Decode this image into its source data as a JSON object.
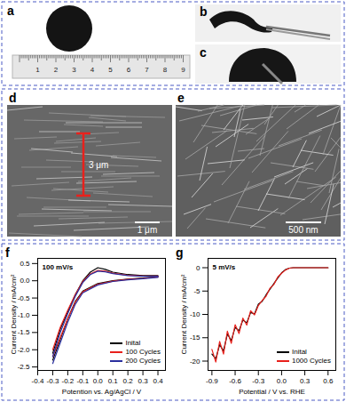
{
  "panels": [
    {
      "label": "a",
      "ruler_labels": [
        1,
        2,
        3,
        4,
        5,
        6,
        7,
        8,
        9
      ]
    },
    {
      "label": "b"
    },
    {
      "label": "c"
    },
    {
      "label": "d",
      "annotations": [
        "3 μm",
        "1 μm"
      ]
    },
    {
      "label": "e",
      "annotations": [
        "500 nm"
      ]
    }
  ],
  "chart_data": [
    {
      "panel": "f",
      "type": "line",
      "annotation": "100 mV/s",
      "x_label": "Potention vs. Ag/AgCl / V",
      "y_label": "Current Density / mA/cm²",
      "xlim": [
        -0.4,
        0.45
      ],
      "xticks": [
        -0.4,
        -0.3,
        -0.2,
        -0.1,
        {
          "value": 0,
          "label": "0.0"
        },
        0.1,
        0.2,
        0.3,
        0.4
      ],
      "ylim": [
        -2.6,
        0.65
      ],
      "yticks": [
        0.5,
        {
          "value": 0,
          "label": "0.0"
        },
        -0.5,
        {
          "value": -1,
          "label": "-1.0"
        },
        -1.5,
        {
          "value": -2,
          "label": "-2.0"
        },
        -2.5
      ],
      "legend": "bottom-right",
      "series": [
        {
          "name": "Inital",
          "color": "#000000",
          "x": [
            -0.3,
            -0.25,
            -0.2,
            -0.15,
            -0.1,
            -0.05,
            0,
            0.05,
            0.1,
            0.2,
            0.3,
            0.4,
            0.4,
            0.3,
            0.2,
            0.1,
            0,
            -0.1,
            -0.15,
            -0.2,
            -0.25,
            -0.3
          ],
          "values": [
            -2.1,
            -1.4,
            -0.9,
            -0.4,
            0.0,
            0.25,
            0.38,
            0.33,
            0.25,
            0.18,
            0.15,
            0.15,
            0.12,
            0.08,
            0.05,
            0.0,
            -0.08,
            -0.3,
            -0.6,
            -1.1,
            -1.7,
            -2.3
          ]
        },
        {
          "name": "100 Cycles",
          "color": "#e8211c",
          "x": [
            -0.3,
            -0.25,
            -0.2,
            -0.15,
            -0.1,
            -0.05,
            0,
            0.05,
            0.1,
            0.2,
            0.3,
            0.4,
            0.4,
            0.3,
            0.2,
            0.1,
            0,
            -0.1,
            -0.15,
            -0.2,
            -0.25,
            -0.3
          ],
          "values": [
            -2.0,
            -1.35,
            -0.85,
            -0.4,
            -0.02,
            0.2,
            0.3,
            0.28,
            0.22,
            0.16,
            0.14,
            0.14,
            0.11,
            0.07,
            0.04,
            -0.01,
            -0.1,
            -0.32,
            -0.62,
            -1.1,
            -1.65,
            -2.2
          ]
        },
        {
          "name": "200 Cycles",
          "color": "#2b2f9e",
          "x": [
            -0.3,
            -0.25,
            -0.2,
            -0.15,
            -0.1,
            -0.05,
            0,
            0.05,
            0.1,
            0.2,
            0.3,
            0.4,
            0.4,
            0.3,
            0.2,
            0.1,
            0,
            -0.1,
            -0.15,
            -0.2,
            -0.25,
            -0.3
          ],
          "values": [
            -2.2,
            -1.5,
            -0.95,
            -0.45,
            -0.05,
            0.18,
            0.28,
            0.26,
            0.21,
            0.15,
            0.13,
            0.13,
            0.1,
            0.06,
            0.03,
            -0.02,
            -0.12,
            -0.35,
            -0.68,
            -1.2,
            -1.8,
            -2.4
          ]
        }
      ]
    },
    {
      "panel": "g",
      "type": "line",
      "annotation": "5 mV/s",
      "x_label": "Potential / V vs. RHE",
      "y_label": "Current Density / mA/cm²",
      "xlim": [
        -0.95,
        0.7
      ],
      "xticks": [
        -0.9,
        -0.6,
        -0.3,
        {
          "value": 0,
          "label": "0.0"
        },
        0.3,
        0.6
      ],
      "ylim": [
        -22,
        2
      ],
      "yticks": [
        0,
        -5,
        -10,
        -15,
        -20
      ],
      "legend": "bottom-right",
      "x": [
        -0.9,
        -0.85,
        -0.8,
        -0.75,
        -0.7,
        -0.65,
        -0.6,
        -0.55,
        -0.5,
        -0.45,
        -0.4,
        -0.35,
        -0.3,
        -0.25,
        -0.2,
        -0.15,
        -0.1,
        -0.05,
        0,
        0.05,
        0.1,
        0.15,
        0.2,
        0.25,
        0.3,
        0.35,
        0.4,
        0.45,
        0.5,
        0.55,
        0.6
      ],
      "series": [
        {
          "name": "Inital",
          "color": "#000000",
          "values": [
            -18.5,
            -19.5,
            -16.5,
            -17.8,
            -14.2,
            -15.6,
            -12.8,
            -13.5,
            -11.2,
            -11.8,
            -9.6,
            -9.9,
            -7.8,
            -7.2,
            -5.8,
            -4.6,
            -3.4,
            -2.2,
            -1.1,
            -0.4,
            -0.1,
            0,
            0,
            0,
            0,
            0,
            0,
            0,
            0,
            0,
            0
          ]
        },
        {
          "name": "1000 Cycles",
          "color": "#e8211c",
          "values": [
            -17.5,
            -20.2,
            -15.8,
            -18.5,
            -13.6,
            -16.2,
            -12.2,
            -14.1,
            -10.8,
            -12.3,
            -9.2,
            -10.1,
            -8.1,
            -7.0,
            -6.1,
            -4.4,
            -3.6,
            -2.0,
            -1.2,
            -0.5,
            -0.1,
            0,
            0,
            0,
            0,
            0,
            0,
            0,
            0,
            0,
            0
          ]
        }
      ]
    }
  ]
}
